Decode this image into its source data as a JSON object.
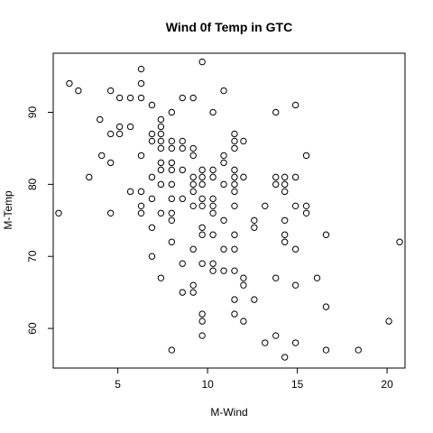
{
  "chart_data": {
    "type": "scatter",
    "title": "Wind 0f Temp in GTC",
    "xlabel": "M-Wind",
    "ylabel": "M-Temp",
    "xlim": [
      1.4,
      21.0
    ],
    "ylim": [
      54.5,
      98.2
    ],
    "xticks": [
      5,
      10,
      15,
      20
    ],
    "yticks": [
      60,
      70,
      80,
      90
    ],
    "grid": false,
    "legend": "none",
    "points": [
      [
        1.7,
        76
      ],
      [
        2.3,
        94
      ],
      [
        2.8,
        93
      ],
      [
        3.4,
        81
      ],
      [
        4.0,
        89
      ],
      [
        4.1,
        84
      ],
      [
        4.6,
        93
      ],
      [
        4.6,
        87
      ],
      [
        4.6,
        83
      ],
      [
        4.6,
        76
      ],
      [
        5.1,
        88
      ],
      [
        5.1,
        87
      ],
      [
        5.1,
        92
      ],
      [
        5.7,
        88
      ],
      [
        5.7,
        92
      ],
      [
        5.7,
        79
      ],
      [
        6.3,
        96
      ],
      [
        6.3,
        94
      ],
      [
        6.3,
        92
      ],
      [
        6.3,
        84
      ],
      [
        6.3,
        79
      ],
      [
        6.3,
        77
      ],
      [
        6.3,
        76
      ],
      [
        6.9,
        91
      ],
      [
        6.9,
        87
      ],
      [
        6.9,
        86
      ],
      [
        6.9,
        81
      ],
      [
        6.9,
        78
      ],
      [
        6.9,
        74
      ],
      [
        6.9,
        70
      ],
      [
        7.4,
        89
      ],
      [
        7.4,
        88
      ],
      [
        7.4,
        87
      ],
      [
        7.4,
        86
      ],
      [
        7.4,
        85
      ],
      [
        7.4,
        83
      ],
      [
        7.4,
        82
      ],
      [
        7.4,
        80
      ],
      [
        7.4,
        76
      ],
      [
        7.4,
        67
      ],
      [
        8.0,
        90
      ],
      [
        8.0,
        86
      ],
      [
        8.0,
        85
      ],
      [
        8.0,
        83
      ],
      [
        8.0,
        82
      ],
      [
        8.0,
        80
      ],
      [
        8.0,
        78
      ],
      [
        8.0,
        76
      ],
      [
        8.0,
        75
      ],
      [
        8.0,
        72
      ],
      [
        8.0,
        57
      ],
      [
        8.6,
        92
      ],
      [
        8.6,
        86
      ],
      [
        8.6,
        85
      ],
      [
        8.6,
        82
      ],
      [
        8.6,
        78
      ],
      [
        8.6,
        69
      ],
      [
        8.6,
        65
      ],
      [
        9.2,
        92
      ],
      [
        9.2,
        85
      ],
      [
        9.2,
        84
      ],
      [
        9.2,
        81
      ],
      [
        9.2,
        80
      ],
      [
        9.2,
        79
      ],
      [
        9.2,
        77
      ],
      [
        9.2,
        71
      ],
      [
        9.2,
        66
      ],
      [
        9.2,
        65
      ],
      [
        9.7,
        97
      ],
      [
        9.7,
        82
      ],
      [
        9.7,
        81
      ],
      [
        9.7,
        80
      ],
      [
        9.7,
        78
      ],
      [
        9.7,
        77
      ],
      [
        9.7,
        74
      ],
      [
        9.7,
        73
      ],
      [
        9.7,
        69
      ],
      [
        9.7,
        62
      ],
      [
        9.7,
        61
      ],
      [
        9.7,
        59
      ],
      [
        10.3,
        90
      ],
      [
        10.3,
        82
      ],
      [
        10.3,
        81
      ],
      [
        10.3,
        78
      ],
      [
        10.3,
        77
      ],
      [
        10.3,
        76
      ],
      [
        10.3,
        73
      ],
      [
        10.3,
        69
      ],
      [
        10.3,
        68
      ],
      [
        10.9,
        93
      ],
      [
        10.9,
        84
      ],
      [
        10.9,
        83
      ],
      [
        10.9,
        80
      ],
      [
        10.9,
        75
      ],
      [
        10.9,
        71
      ],
      [
        10.9,
        68
      ],
      [
        11.5,
        87
      ],
      [
        11.5,
        86
      ],
      [
        11.5,
        85
      ],
      [
        11.5,
        82
      ],
      [
        11.5,
        81
      ],
      [
        11.5,
        80
      ],
      [
        11.5,
        79
      ],
      [
        11.5,
        77
      ],
      [
        11.5,
        73
      ],
      [
        11.5,
        71
      ],
      [
        11.5,
        68
      ],
      [
        11.5,
        64
      ],
      [
        11.5,
        62
      ],
      [
        12.0,
        86
      ],
      [
        12.0,
        81
      ],
      [
        12.0,
        67
      ],
      [
        12.0,
        66
      ],
      [
        12.0,
        61
      ],
      [
        12.6,
        75
      ],
      [
        12.6,
        74
      ],
      [
        12.6,
        64
      ],
      [
        13.2,
        77
      ],
      [
        13.2,
        58
      ],
      [
        13.8,
        90
      ],
      [
        13.8,
        81
      ],
      [
        13.8,
        80
      ],
      [
        13.8,
        67
      ],
      [
        13.8,
        59
      ],
      [
        14.3,
        81
      ],
      [
        14.3,
        80
      ],
      [
        14.3,
        79
      ],
      [
        14.3,
        75
      ],
      [
        14.3,
        73
      ],
      [
        14.3,
        72
      ],
      [
        14.3,
        56
      ],
      [
        14.9,
        91
      ],
      [
        14.9,
        81
      ],
      [
        14.9,
        77
      ],
      [
        14.9,
        71
      ],
      [
        14.9,
        66
      ],
      [
        14.9,
        58
      ],
      [
        15.5,
        84
      ],
      [
        15.5,
        77
      ],
      [
        15.5,
        76
      ],
      [
        16.1,
        67
      ],
      [
        16.6,
        73
      ],
      [
        16.6,
        63
      ],
      [
        16.6,
        57
      ],
      [
        18.4,
        57
      ],
      [
        20.1,
        61
      ],
      [
        20.7,
        72
      ]
    ]
  }
}
